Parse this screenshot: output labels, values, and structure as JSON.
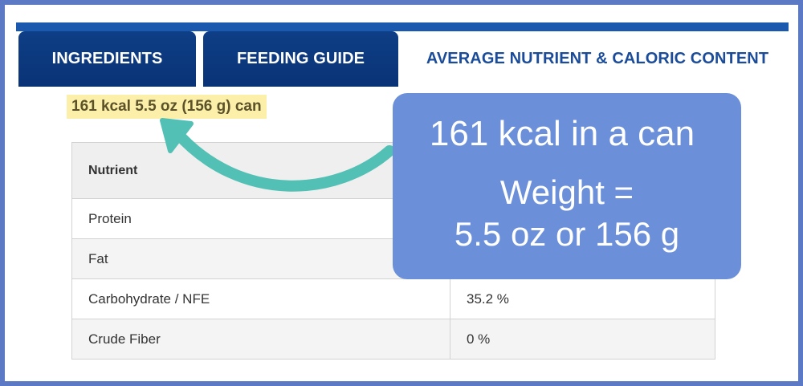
{
  "tabs": [
    {
      "label": "INGREDIENTS",
      "active": false
    },
    {
      "label": "FEEDING GUIDE",
      "active": false
    },
    {
      "label": "AVERAGE NUTRIENT & CALORIC CONTENT",
      "active": true
    }
  ],
  "highlight_text": "161 kcal 5.5 oz (156 g) can",
  "table": {
    "header": [
      "Nutrient",
      ""
    ],
    "rows": [
      {
        "nutrient": "Protein",
        "value": ""
      },
      {
        "nutrient": "Fat",
        "value": ""
      },
      {
        "nutrient": "Carbohydrate / NFE",
        "value": "35.2 %"
      },
      {
        "nutrient": "Crude Fiber",
        "value": "0 %"
      }
    ]
  },
  "callout": {
    "line1": "161 kcal in a can",
    "line2": "Weight =",
    "line3": "5.5 oz or 156 g"
  },
  "colors": {
    "frame": "#5b79c4",
    "tab_dark": "#0e3e86",
    "tab_active_text": "#1a4c9a",
    "highlight": "#fbefa9",
    "callout": "#6b8fd9",
    "arrow": "#52c0b4"
  }
}
